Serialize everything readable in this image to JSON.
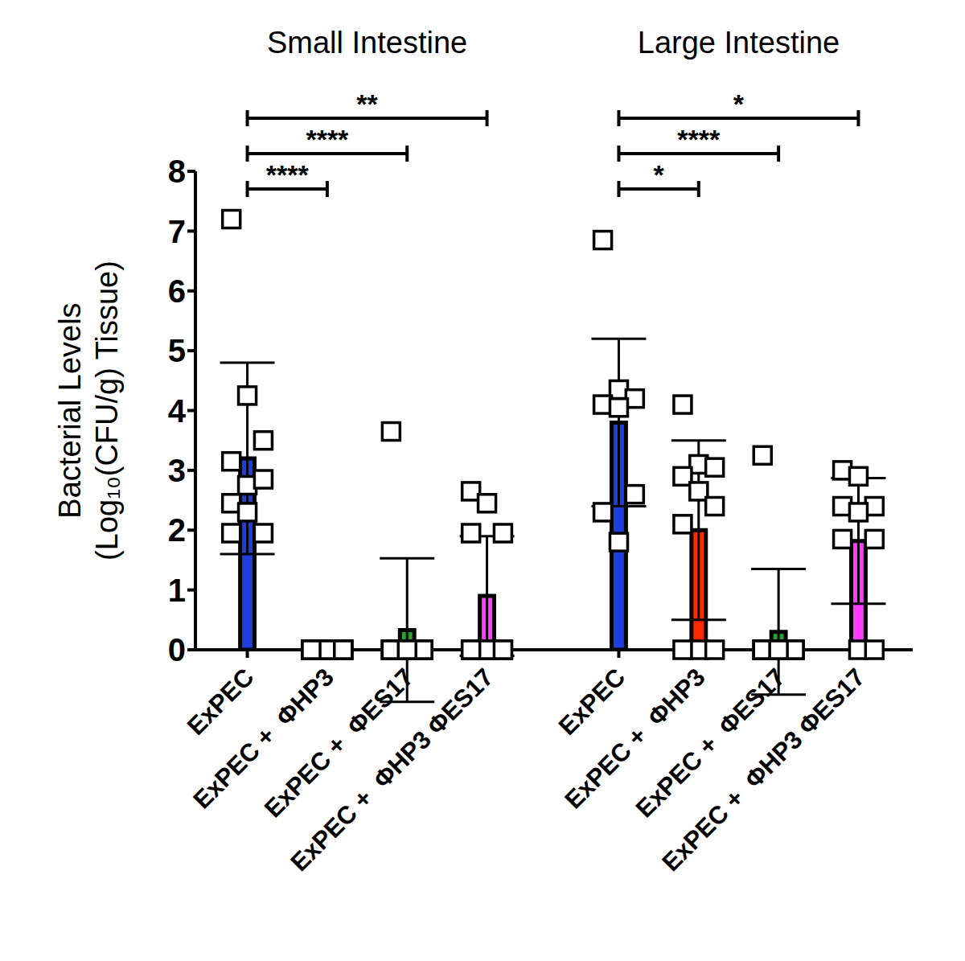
{
  "chart_data": {
    "type": "bar",
    "y_label": [
      "Bacterial Levels",
      "(Log₁₀(CFU/g) Tissue)"
    ],
    "ylim": [
      0,
      8
    ],
    "yticks": [
      0,
      1,
      2,
      3,
      4,
      5,
      6,
      7,
      8
    ],
    "groups": [
      {
        "title": "Small Intestine",
        "categories": [
          "ExPEC",
          "ExPEC +  ΦHP3",
          "ExPEC +  ΦES17",
          "ExPEC +  ΦHP3 ΦES17"
        ],
        "values": [
          3.2,
          0,
          0.33,
          0.9
        ],
        "errors": [
          1.6,
          0,
          1.2,
          1.0
        ],
        "colors": [
          "#1f3fdc",
          "#ff2a00",
          "#2ca02c",
          "#ff3dff"
        ],
        "points": [
          [
            7.2,
            4.25,
            3.5,
            3.15,
            2.75,
            2.85,
            2.45,
            2.3,
            1.95,
            1.95
          ],
          [
            0,
            0,
            0,
            0,
            0,
            0,
            0,
            0,
            0,
            0
          ],
          [
            3.65,
            0,
            0,
            0,
            0,
            0,
            0,
            0,
            0,
            0,
            0
          ],
          [
            2.65,
            2.45,
            1.95,
            1.95,
            0,
            0,
            0,
            0,
            0,
            0
          ]
        ],
        "comparisons": [
          {
            "pair": [
              0,
              1
            ],
            "label": "****"
          },
          {
            "pair": [
              0,
              2
            ],
            "label": "****"
          },
          {
            "pair": [
              0,
              3
            ],
            "label": "**"
          }
        ]
      },
      {
        "title": "Large Intestine",
        "categories": [
          "ExPEC",
          "ExPEC +  ΦHP3",
          "ExPEC +  ΦES17",
          "ExPEC +  ΦHP3 ΦES17"
        ],
        "values": [
          3.8,
          2.0,
          0.3,
          1.82
        ],
        "errors": [
          1.4,
          1.5,
          1.05,
          1.05
        ],
        "colors": [
          "#1f3fdc",
          "#ff2a00",
          "#2ca02c",
          "#ff3dff"
        ],
        "points": [
          [
            6.85,
            4.35,
            4.2,
            4.1,
            4.05,
            2.6,
            2.3,
            1.8
          ],
          [
            4.1,
            3.1,
            3.05,
            2.9,
            2.65,
            2.4,
            2.1,
            0,
            0,
            0
          ],
          [
            3.25,
            0,
            0,
            0,
            0,
            0,
            0,
            0,
            0,
            0,
            0
          ],
          [
            3.0,
            2.9,
            2.4,
            2.4,
            2.3,
            1.85,
            1.85,
            0,
            0
          ]
        ],
        "comparisons": [
          {
            "pair": [
              0,
              1
            ],
            "label": "*"
          },
          {
            "pair": [
              0,
              2
            ],
            "label": "****"
          },
          {
            "pair": [
              0,
              3
            ],
            "label": "*"
          }
        ]
      }
    ]
  }
}
